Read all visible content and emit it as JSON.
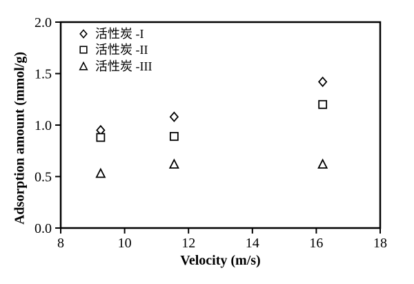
{
  "colors": {
    "foreground": "#000000",
    "background": "#ffffff"
  },
  "chart_data": {
    "type": "scatter",
    "title": "",
    "xlabel": "Velocity (m/s)",
    "ylabel": "Adsorption amount (mmol/g)",
    "xlim": [
      8,
      18
    ],
    "ylim": [
      0.0,
      2.0
    ],
    "x_ticks": [
      "8",
      "10",
      "12",
      "14",
      "16",
      "18"
    ],
    "y_ticks": [
      "0.0",
      "0.5",
      "1.0",
      "1.5",
      "2.0"
    ],
    "grid": false,
    "legend_position": "inside-top-left",
    "x": [
      9.25,
      11.55,
      16.2
    ],
    "series": [
      {
        "name": "活性炭 -I",
        "marker": "diamond",
        "values": [
          0.95,
          1.08,
          1.42
        ]
      },
      {
        "name": "活性炭 -II",
        "marker": "square",
        "values": [
          0.88,
          0.89,
          1.2
        ]
      },
      {
        "name": "活性炭 -III",
        "marker": "triangle",
        "values": [
          0.53,
          0.62,
          0.62
        ]
      }
    ]
  }
}
